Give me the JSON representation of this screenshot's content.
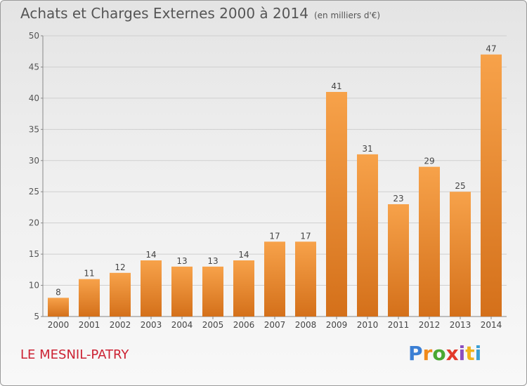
{
  "title": "Achats et Charges Externes 2000 à 2014",
  "unit_label": "(en milliers d'€)",
  "commune": "LE MESNIL-PATRY",
  "logo": {
    "letters": [
      "P",
      "r",
      "o",
      "x",
      "i",
      "t",
      "i"
    ],
    "colors": [
      "#3b7fd4",
      "#f08a1c",
      "#4aa832",
      "#e23a2a",
      "#8b4fc0",
      "#f0b21c",
      "#3b9fd4"
    ]
  },
  "chart_data": {
    "type": "bar",
    "categories": [
      "2000",
      "2001",
      "2002",
      "2003",
      "2004",
      "2005",
      "2006",
      "2007",
      "2008",
      "2009",
      "2010",
      "2011",
      "2012",
      "2013",
      "2014"
    ],
    "values": [
      8,
      11,
      12,
      14,
      13,
      13,
      14,
      17,
      17,
      41,
      31,
      23,
      29,
      25,
      47
    ],
    "ylim": [
      5,
      50
    ],
    "yticks": [
      5,
      10,
      15,
      20,
      25,
      30,
      35,
      40,
      45,
      50
    ],
    "grid": true,
    "bar_color": "#f0922e"
  }
}
